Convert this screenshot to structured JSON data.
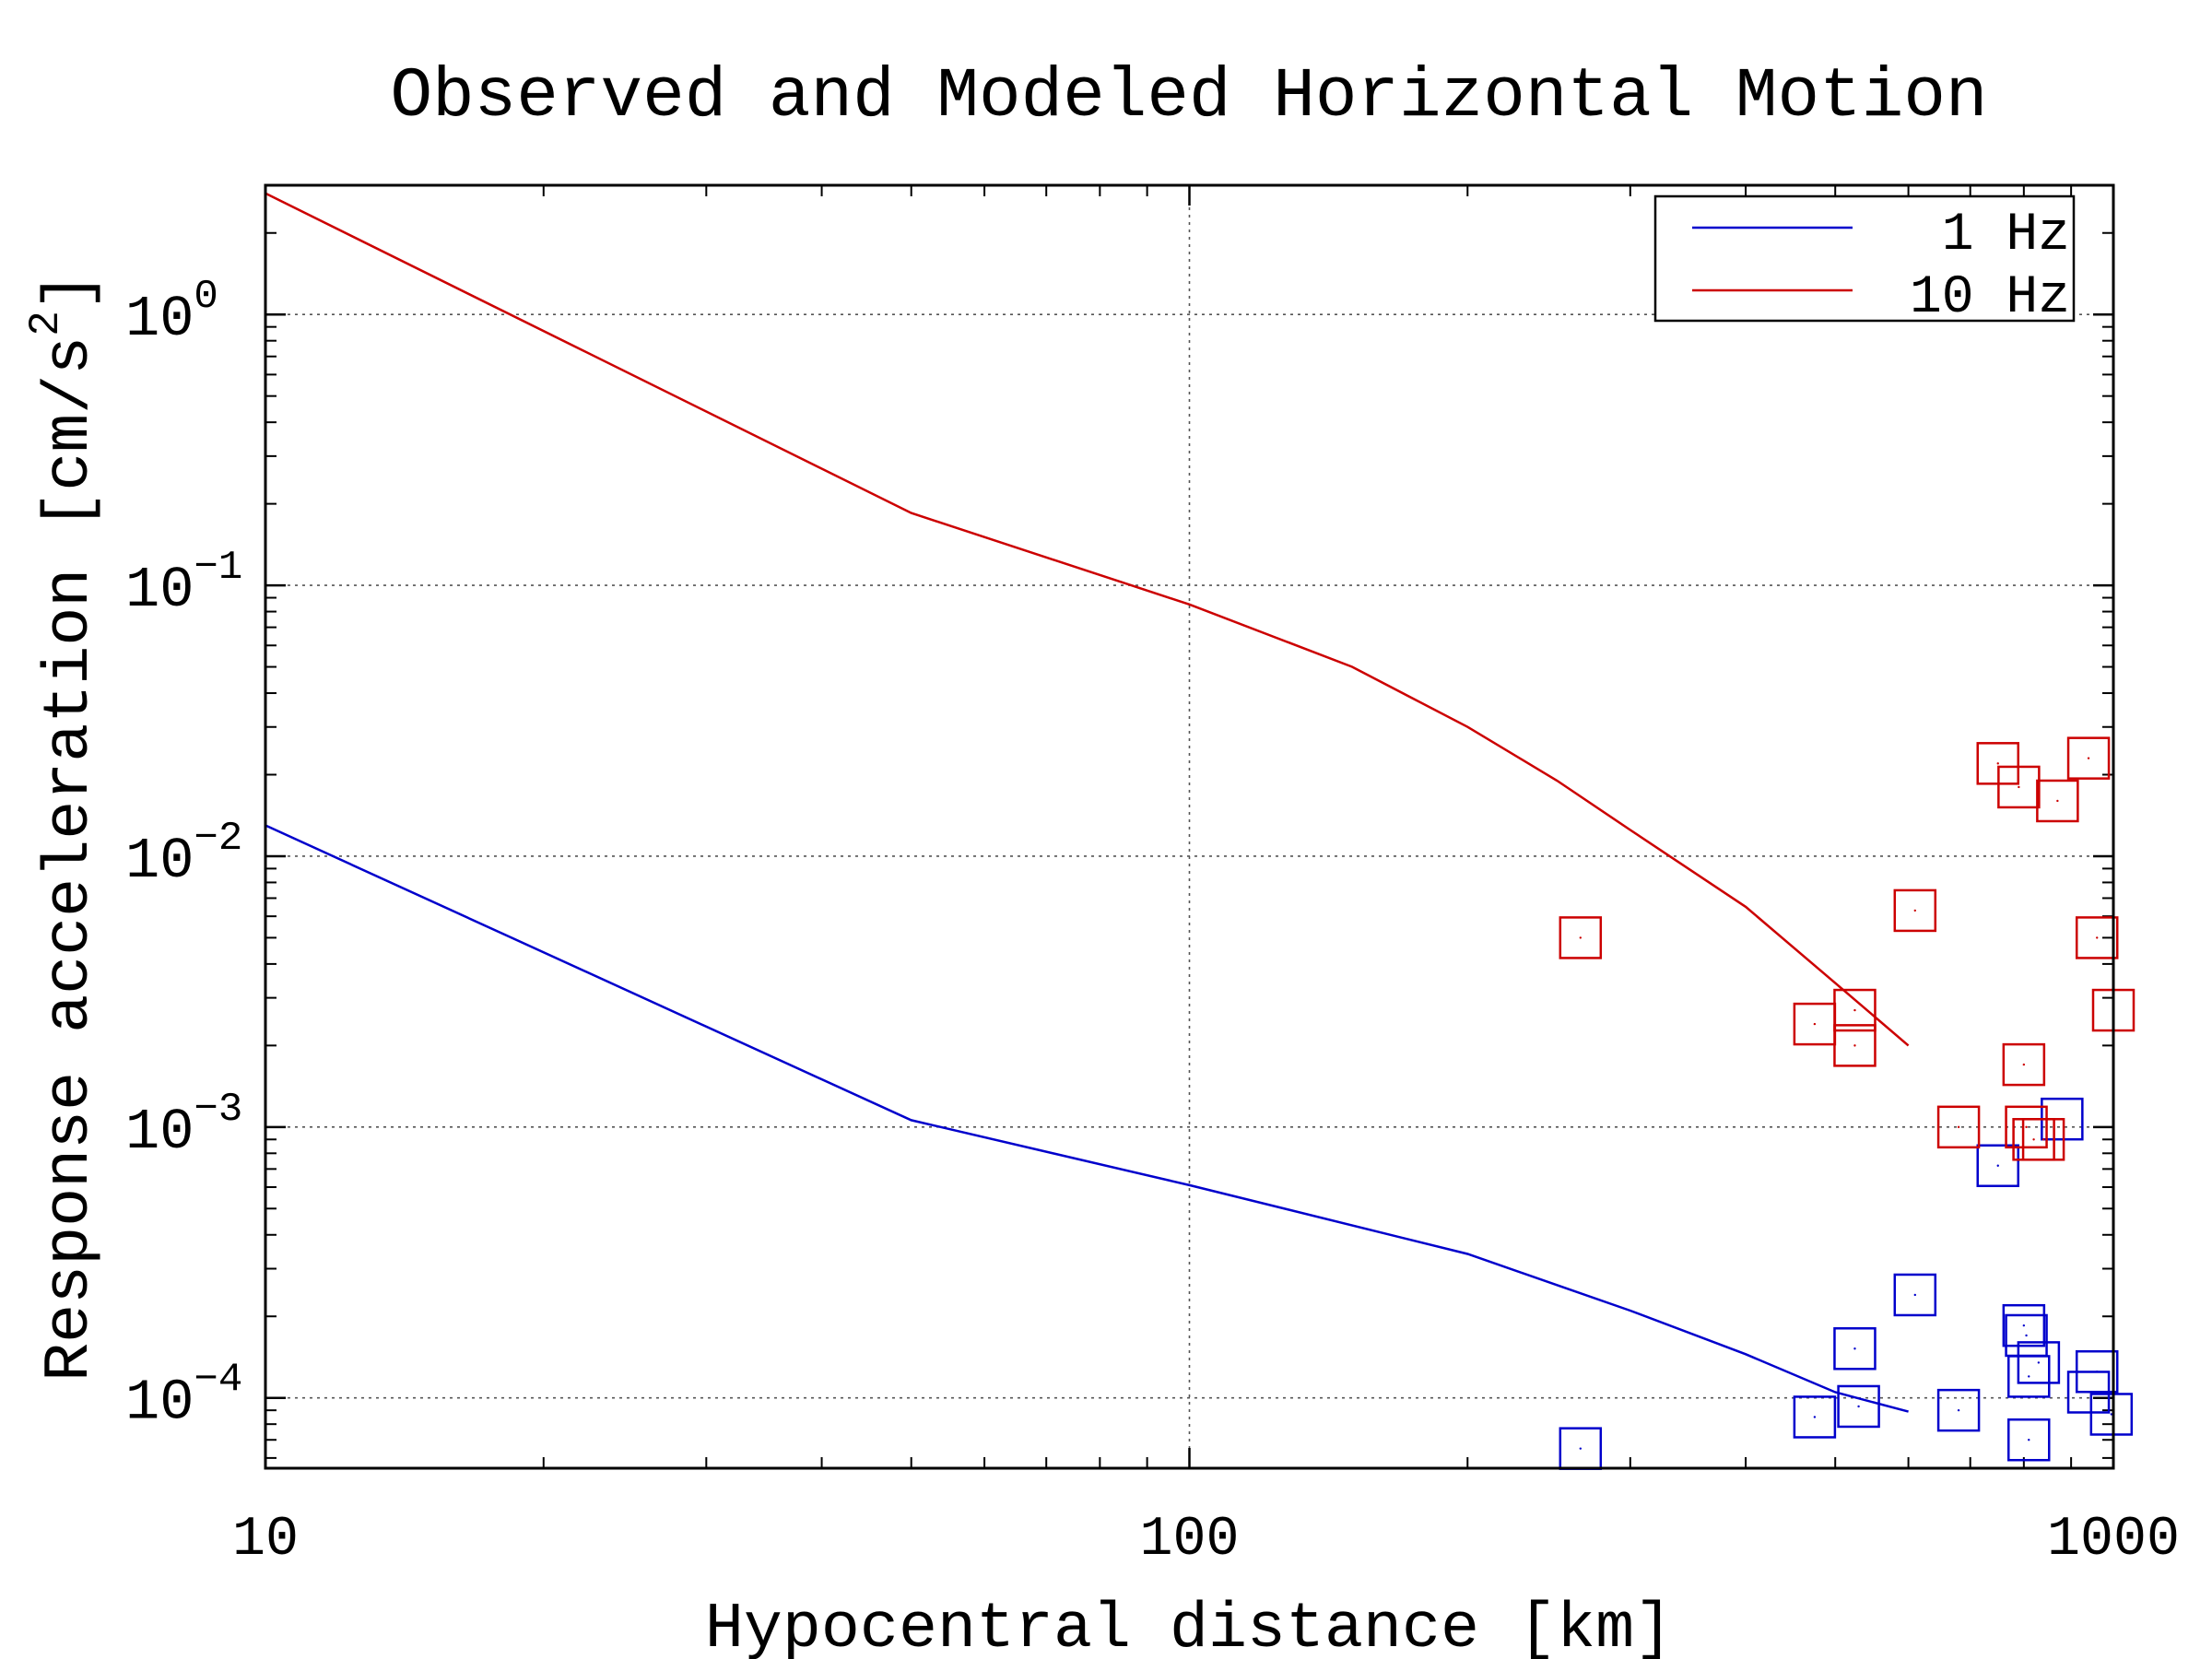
{
  "chart_data": {
    "type": "scatter",
    "title": "Observed and Modeled Horizontal Motion",
    "xlabel": "Hypocentral distance [km]",
    "ylabel_main": "Response acceleration [cm/s",
    "ylabel_sup": "2",
    "ylabel_close": "]",
    "x_scale": "log",
    "y_scale": "log",
    "xlim": [
      10,
      1000
    ],
    "ylim": [
      5.5e-05,
      3
    ],
    "grid": true,
    "legend_position": "top-right",
    "x_ticks": [
      {
        "value": 10,
        "label": "10"
      },
      {
        "value": 100,
        "label": "100"
      },
      {
        "value": 1000,
        "label": "1000"
      }
    ],
    "y_ticks": [
      {
        "value": 1,
        "base": "10",
        "exp": "0"
      },
      {
        "value": 0.1,
        "base": "10",
        "exp": "−1"
      },
      {
        "value": 0.01,
        "base": "10",
        "exp": "−2"
      },
      {
        "value": 0.001,
        "base": "10",
        "exp": "−3"
      },
      {
        "value": 0.0001,
        "base": "10",
        "exp": "−4"
      }
    ],
    "series": [
      {
        "name": "1 Hz",
        "color": "#0000cc",
        "model_line": [
          [
            10,
            0.013
          ],
          [
            50,
            0.00106
          ],
          [
            100,
            0.00061
          ],
          [
            200,
            0.00034
          ],
          [
            300,
            0.00021
          ],
          [
            400,
            0.000145
          ],
          [
            500,
            0.000105
          ],
          [
            600,
            8.9e-05
          ]
        ],
        "observed": [
          [
            265,
            6.5e-05
          ],
          [
            475,
            8.5e-05
          ],
          [
            525,
            0.000152
          ],
          [
            530,
            9.3e-05
          ],
          [
            610,
            0.00024
          ],
          [
            680,
            9e-05
          ],
          [
            750,
            0.00072
          ],
          [
            800,
            0.000185
          ],
          [
            805,
            0.00017
          ],
          [
            810,
            0.00012
          ],
          [
            810,
            7e-05
          ],
          [
            830,
            0.000135
          ],
          [
            880,
            0.00107
          ],
          [
            940,
            0.000105
          ],
          [
            960,
            0.000125
          ],
          [
            995,
            8.7e-05
          ]
        ]
      },
      {
        "name": "10 Hz",
        "color": "#cc0000",
        "model_line": [
          [
            10,
            2.8
          ],
          [
            50,
            0.185
          ],
          [
            100,
            0.085
          ],
          [
            150,
            0.05
          ],
          [
            200,
            0.03
          ],
          [
            250,
            0.019
          ],
          [
            300,
            0.0125
          ],
          [
            400,
            0.0065
          ],
          [
            500,
            0.0034
          ],
          [
            600,
            0.002
          ]
        ],
        "observed": [
          [
            265,
            0.005
          ],
          [
            475,
            0.0024
          ],
          [
            525,
            0.0027
          ],
          [
            525,
            0.002
          ],
          [
            610,
            0.0063
          ],
          [
            680,
            0.001
          ],
          [
            750,
            0.022
          ],
          [
            790,
            0.018
          ],
          [
            800,
            0.0017
          ],
          [
            805,
            0.001
          ],
          [
            820,
            0.0009
          ],
          [
            840,
            0.0009
          ],
          [
            870,
            0.016
          ],
          [
            940,
            0.023
          ],
          [
            960,
            0.005
          ],
          [
            1000,
            0.0027
          ]
        ]
      }
    ]
  }
}
